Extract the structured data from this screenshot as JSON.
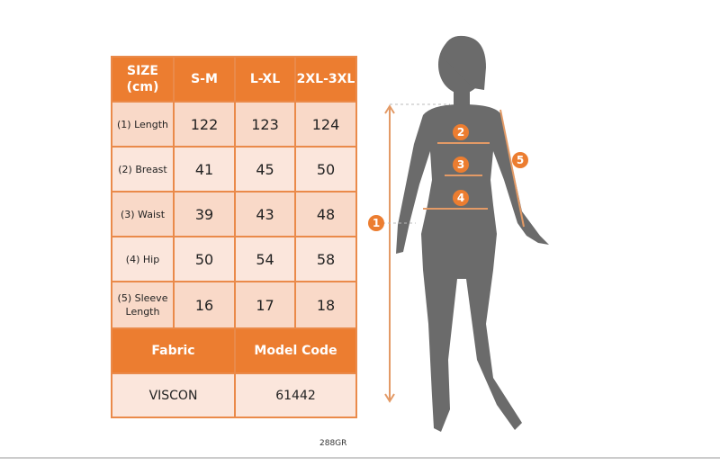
{
  "table": {
    "header": [
      "SIZE (cm)",
      "S-M",
      "L-XL",
      "2XL-3XL"
    ],
    "rows": [
      {
        "label": "(1) Length",
        "values": [
          "122",
          "123",
          "124"
        ]
      },
      {
        "label": "(2) Breast",
        "values": [
          "41",
          "45",
          "50"
        ]
      },
      {
        "label": "(3) Waist",
        "values": [
          "39",
          "43",
          "48"
        ]
      },
      {
        "label": "(4) Hip",
        "values": [
          "50",
          "54",
          "58"
        ]
      },
      {
        "label": "(5) Sleeve Length",
        "values": [
          "16",
          "17",
          "18"
        ]
      }
    ],
    "fabric_label": "Fabric",
    "model_code_label": "Model Code",
    "fabric_value": "VISCON",
    "model_code_value": "61442"
  },
  "product_code": "288GR",
  "markers": [
    "1",
    "2",
    "3",
    "4",
    "5"
  ],
  "colors": {
    "accent": "#ec7d30",
    "silhouette": "#6b6b6b"
  }
}
